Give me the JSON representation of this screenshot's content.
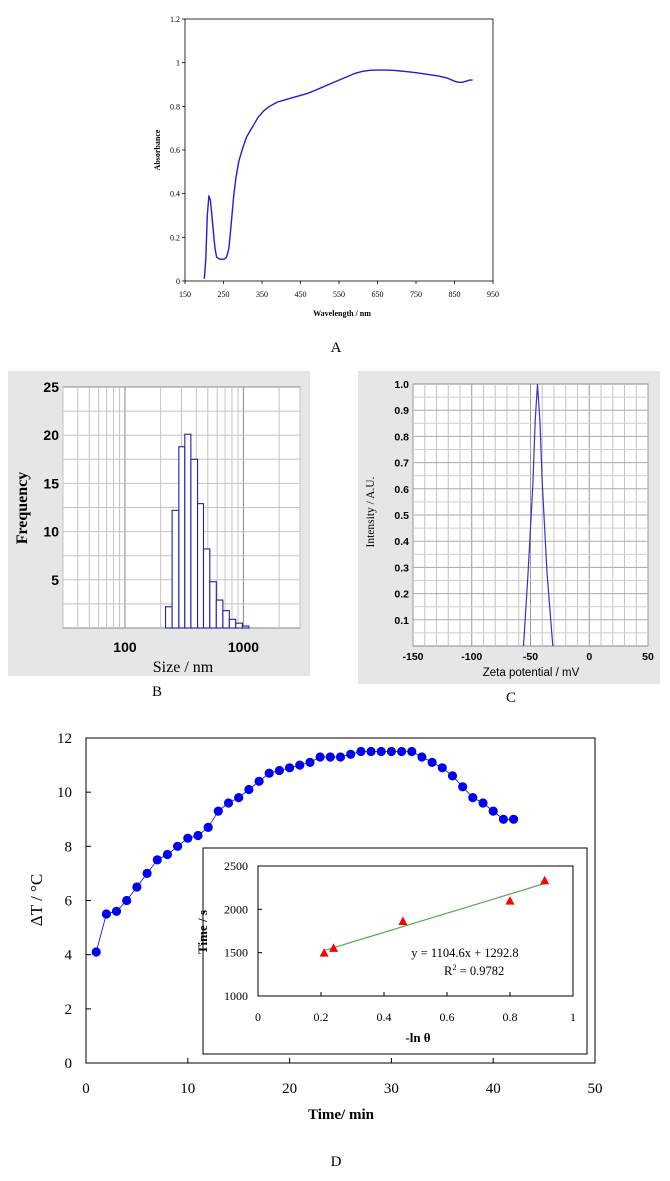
{
  "chart_data": [
    {
      "id": "A",
      "panel_label": "A",
      "type": "line",
      "title": "",
      "xlabel": "Wavelength / nm",
      "ylabel": "Absorbance",
      "xlim": [
        150,
        950
      ],
      "ylim": [
        0,
        1.2
      ],
      "xticks": [
        "150",
        "250",
        "350",
        "450",
        "550",
        "650",
        "750",
        "850",
        "950"
      ],
      "yticks": [
        "0",
        "0.2",
        "0.4",
        "0.6",
        "0.8",
        "1",
        "1.2"
      ],
      "grid": false,
      "color": "#1f1fd0",
      "series": [
        {
          "x": [
            200,
            204,
            208,
            212,
            216,
            220,
            224,
            228,
            232,
            236,
            240,
            246,
            252,
            258,
            264,
            270,
            276,
            282,
            290,
            300,
            310,
            320,
            330,
            340,
            355,
            370,
            390,
            410,
            430,
            450,
            470,
            490,
            510,
            530,
            550,
            570,
            590,
            610,
            630,
            650,
            670,
            690,
            710,
            730,
            750,
            770,
            790,
            810,
            830,
            850,
            860,
            870,
            880,
            890,
            897
          ],
          "y": [
            0.01,
            0.1,
            0.3,
            0.39,
            0.37,
            0.3,
            0.22,
            0.15,
            0.11,
            0.105,
            0.1,
            0.1,
            0.1,
            0.11,
            0.15,
            0.26,
            0.38,
            0.47,
            0.55,
            0.61,
            0.66,
            0.69,
            0.72,
            0.75,
            0.78,
            0.8,
            0.82,
            0.83,
            0.84,
            0.85,
            0.86,
            0.875,
            0.89,
            0.905,
            0.92,
            0.935,
            0.95,
            0.96,
            0.965,
            0.966,
            0.966,
            0.965,
            0.962,
            0.958,
            0.954,
            0.949,
            0.944,
            0.938,
            0.93,
            0.915,
            0.91,
            0.91,
            0.915,
            0.92,
            0.92
          ]
        }
      ]
    },
    {
      "id": "B",
      "panel_label": "B",
      "type": "bar",
      "title": "",
      "xlabel": "Size / nm",
      "ylabel": "Frequency",
      "xscale": "log",
      "xlim": [
        30,
        3000
      ],
      "ylim": [
        0,
        25
      ],
      "xticks": [
        "100",
        "1000"
      ],
      "yticks": [
        "5",
        "10",
        "15",
        "20",
        "25"
      ],
      "grid": true,
      "color": "#1f1fa8",
      "bins": [
        {
          "lo": 220,
          "hi": 250,
          "value": 2.2
        },
        {
          "lo": 250,
          "hi": 285,
          "value": 12.2
        },
        {
          "lo": 285,
          "hi": 320,
          "value": 18.8
        },
        {
          "lo": 320,
          "hi": 360,
          "value": 20.1
        },
        {
          "lo": 360,
          "hi": 410,
          "value": 17.5
        },
        {
          "lo": 410,
          "hi": 460,
          "value": 12.9
        },
        {
          "lo": 460,
          "hi": 520,
          "value": 8.2
        },
        {
          "lo": 520,
          "hi": 590,
          "value": 4.8
        },
        {
          "lo": 590,
          "hi": 670,
          "value": 2.9
        },
        {
          "lo": 670,
          "hi": 760,
          "value": 1.8
        },
        {
          "lo": 760,
          "hi": 860,
          "value": 0.9
        },
        {
          "lo": 860,
          "hi": 980,
          "value": 0.5
        },
        {
          "lo": 980,
          "hi": 1110,
          "value": 0.2
        }
      ]
    },
    {
      "id": "C",
      "panel_label": "C",
      "type": "line",
      "title": "",
      "xlabel": "Zeta potential / mV",
      "ylabel": "Intensity / A.U.",
      "xlim": [
        -150,
        50
      ],
      "ylim": [
        0,
        1.0
      ],
      "xticks": [
        "-150",
        "-100",
        "-50",
        "0",
        "50"
      ],
      "yticks": [
        "0.1",
        "0.2",
        "0.3",
        "0.4",
        "0.5",
        "0.6",
        "0.7",
        "0.8",
        "0.9",
        "1.0"
      ],
      "grid": true,
      "color": "#3333cc",
      "series": [
        {
          "x": [
            -56,
            -52,
            -48,
            -46,
            -44,
            -42,
            -40,
            -36,
            -31
          ],
          "y": [
            0.0,
            0.28,
            0.62,
            0.86,
            1.0,
            0.86,
            0.62,
            0.28,
            0.0
          ]
        }
      ]
    },
    {
      "id": "D",
      "panel_label": "D",
      "type": "scatter",
      "title": "",
      "xlabel": "Time/ min",
      "ylabel": "ΔT / °C",
      "xlim": [
        0,
        50
      ],
      "ylim": [
        0,
        12
      ],
      "xticks": [
        "0",
        "10",
        "20",
        "30",
        "40",
        "50"
      ],
      "yticks": [
        "0",
        "2",
        "4",
        "6",
        "8",
        "10",
        "12"
      ],
      "grid": false,
      "color": "#0000ee",
      "series": [
        {
          "x": [
            1,
            2,
            3,
            4,
            5,
            6,
            7,
            8,
            9,
            10,
            11,
            12,
            13,
            14,
            15,
            16,
            17,
            18,
            19,
            20,
            21,
            22,
            23,
            24,
            25,
            26,
            27,
            28,
            29,
            30,
            31,
            32,
            33,
            34,
            35,
            36,
            37,
            38,
            39,
            40,
            41,
            42
          ],
          "y": [
            4.1,
            5.5,
            5.6,
            6.0,
            6.5,
            7.0,
            7.5,
            7.7,
            8.0,
            8.3,
            8.4,
            8.7,
            9.3,
            9.6,
            9.8,
            10.1,
            10.4,
            10.7,
            10.8,
            10.9,
            11.0,
            11.1,
            11.3,
            11.3,
            11.3,
            11.4,
            11.5,
            11.5,
            11.5,
            11.5,
            11.5,
            11.5,
            11.3,
            11.1,
            10.9,
            10.6,
            10.2,
            9.8,
            9.6,
            9.3,
            9.0,
            9.0
          ]
        }
      ]
    },
    {
      "id": "D-inset",
      "type": "scatter",
      "title": "",
      "xlabel": "-ln θ",
      "ylabel": "Time / s",
      "xlim": [
        0,
        1
      ],
      "ylim": [
        1000,
        2500
      ],
      "xticks": [
        "0",
        "0.2",
        "0.4",
        "0.6",
        "0.8",
        "1"
      ],
      "yticks": [
        "1000",
        "1500",
        "2000",
        "2500"
      ],
      "grid": false,
      "marker_color": "#ff0000",
      "fit_color": "#55aa55",
      "points": {
        "x": [
          0.21,
          0.24,
          0.46,
          0.8,
          0.91
        ],
        "y": [
          1495,
          1550,
          1860,
          2095,
          2330
        ]
      },
      "fit": {
        "slope": 1104.6,
        "intercept": 1292.8,
        "x_range": [
          0.21,
          0.91
        ],
        "equation": "y = 1104.6x + 1292.8",
        "r2_label": "R",
        "r2_sup": "2",
        "r2_value": " = 0.9782"
      }
    }
  ]
}
